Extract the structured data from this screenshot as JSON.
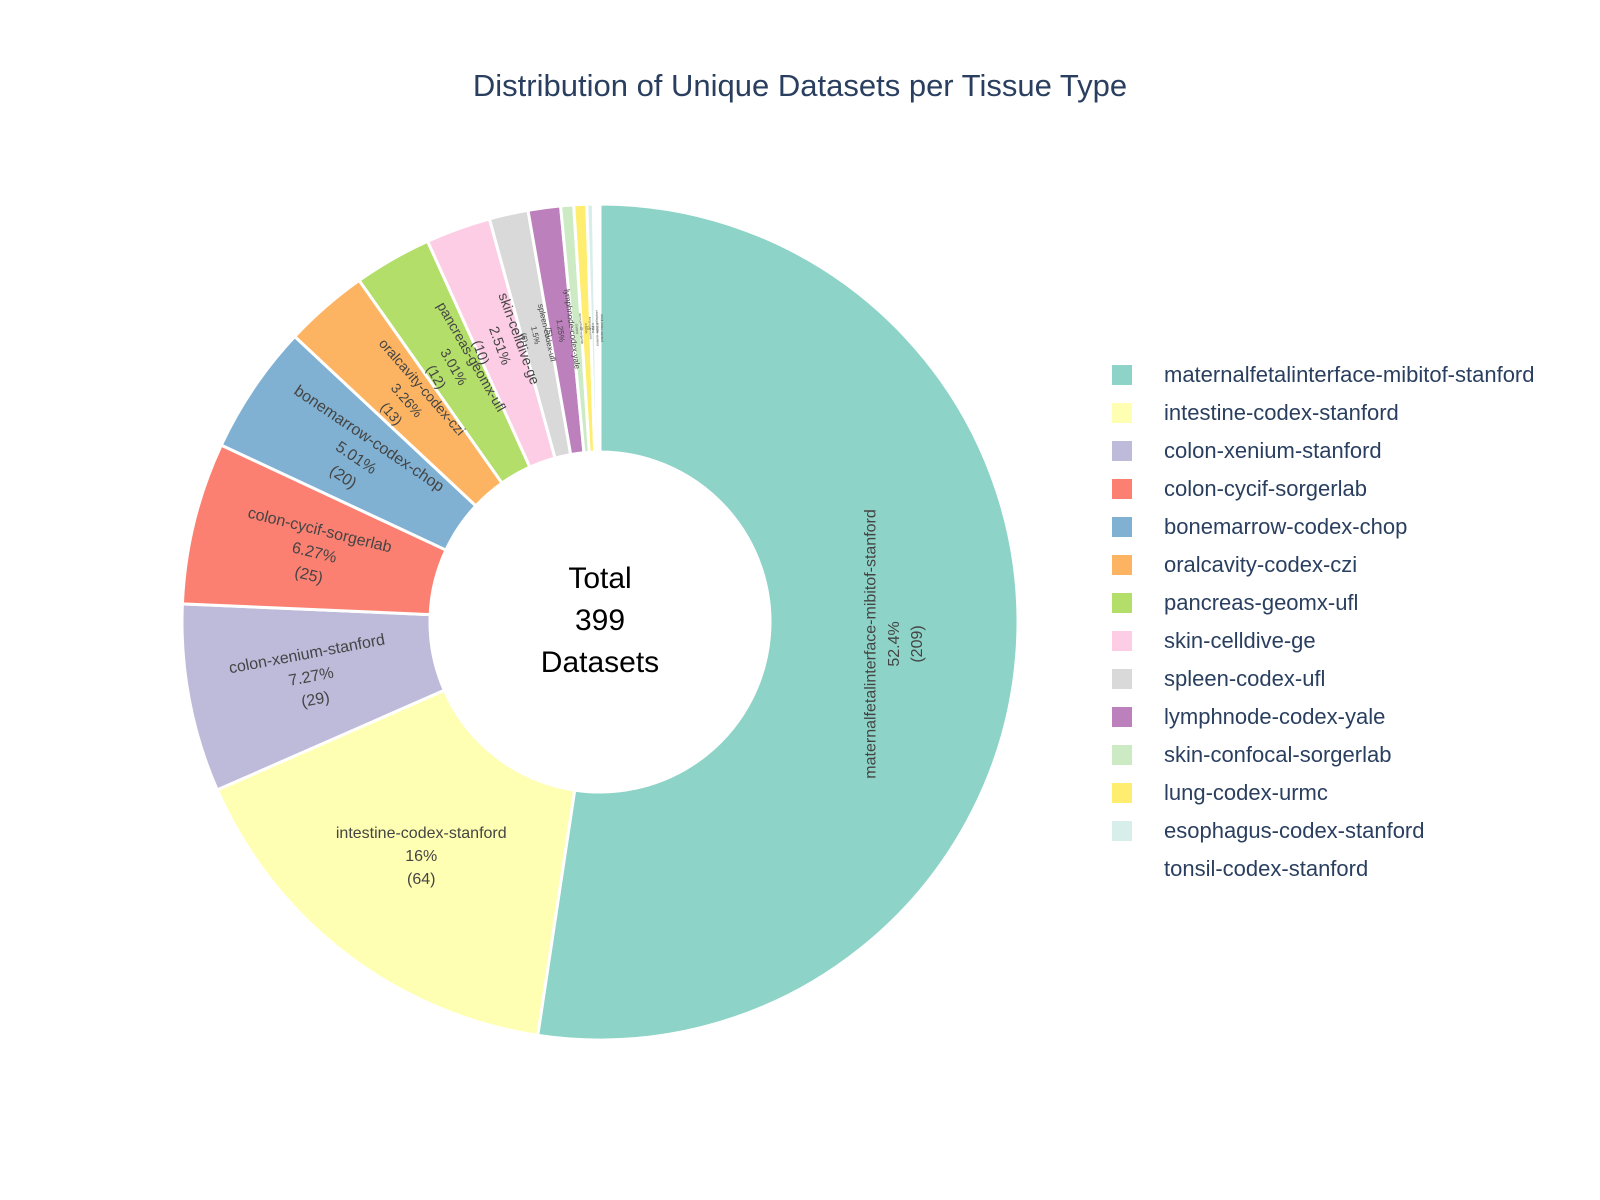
{
  "chart_data": {
    "type": "pie",
    "hole": true,
    "title": "Distribution of Unique Datasets per Tissue Type",
    "center_text": [
      "Total",
      "399",
      "Datasets"
    ],
    "total": 399,
    "legend_position": "right",
    "slices": [
      {
        "label": "maternalfetalinterface-mibitof-stanford",
        "value": 209,
        "percent": "52.4%",
        "color": "#8dd3c7"
      },
      {
        "label": "intestine-codex-stanford",
        "value": 64,
        "percent": "16%",
        "color": "#ffffb3"
      },
      {
        "label": "colon-xenium-stanford",
        "value": 29,
        "percent": "7.27%",
        "color": "#bebada"
      },
      {
        "label": "colon-cycif-sorgerlab",
        "value": 25,
        "percent": "6.27%",
        "color": "#fb8072"
      },
      {
        "label": "bonemarrow-codex-chop",
        "value": 20,
        "percent": "5.01%",
        "color": "#80b1d3"
      },
      {
        "label": "oralcavity-codex-czi",
        "value": 13,
        "percent": "3.26%",
        "color": "#fdb462"
      },
      {
        "label": "pancreas-geomx-ufl",
        "value": 12,
        "percent": "3.01%",
        "color": "#b3de69"
      },
      {
        "label": "skin-celldive-ge",
        "value": 10,
        "percent": "2.51%",
        "color": "#fccde5"
      },
      {
        "label": "spleen-codex-ufl",
        "value": 6,
        "percent": "1.5%",
        "color": "#d9d9d9"
      },
      {
        "label": "lymphnode-codex-yale",
        "value": 5,
        "percent": "1.25%",
        "color": "#bc80bd"
      },
      {
        "label": "skin-confocal-sorgerlab",
        "value": 2,
        "percent": "0.501%",
        "color": "#ccebc5"
      },
      {
        "label": "lung-codex-urmc",
        "value": 2,
        "percent": "0.501%",
        "color": "#ffed6f"
      },
      {
        "label": "esophagus-codex-stanford",
        "value": 1,
        "percent": "0.251%",
        "color": "#d8eeea"
      },
      {
        "label": "tonsil-codex-stanford",
        "value": 1,
        "percent": "0.251%",
        "color": "#ffffff"
      }
    ]
  }
}
